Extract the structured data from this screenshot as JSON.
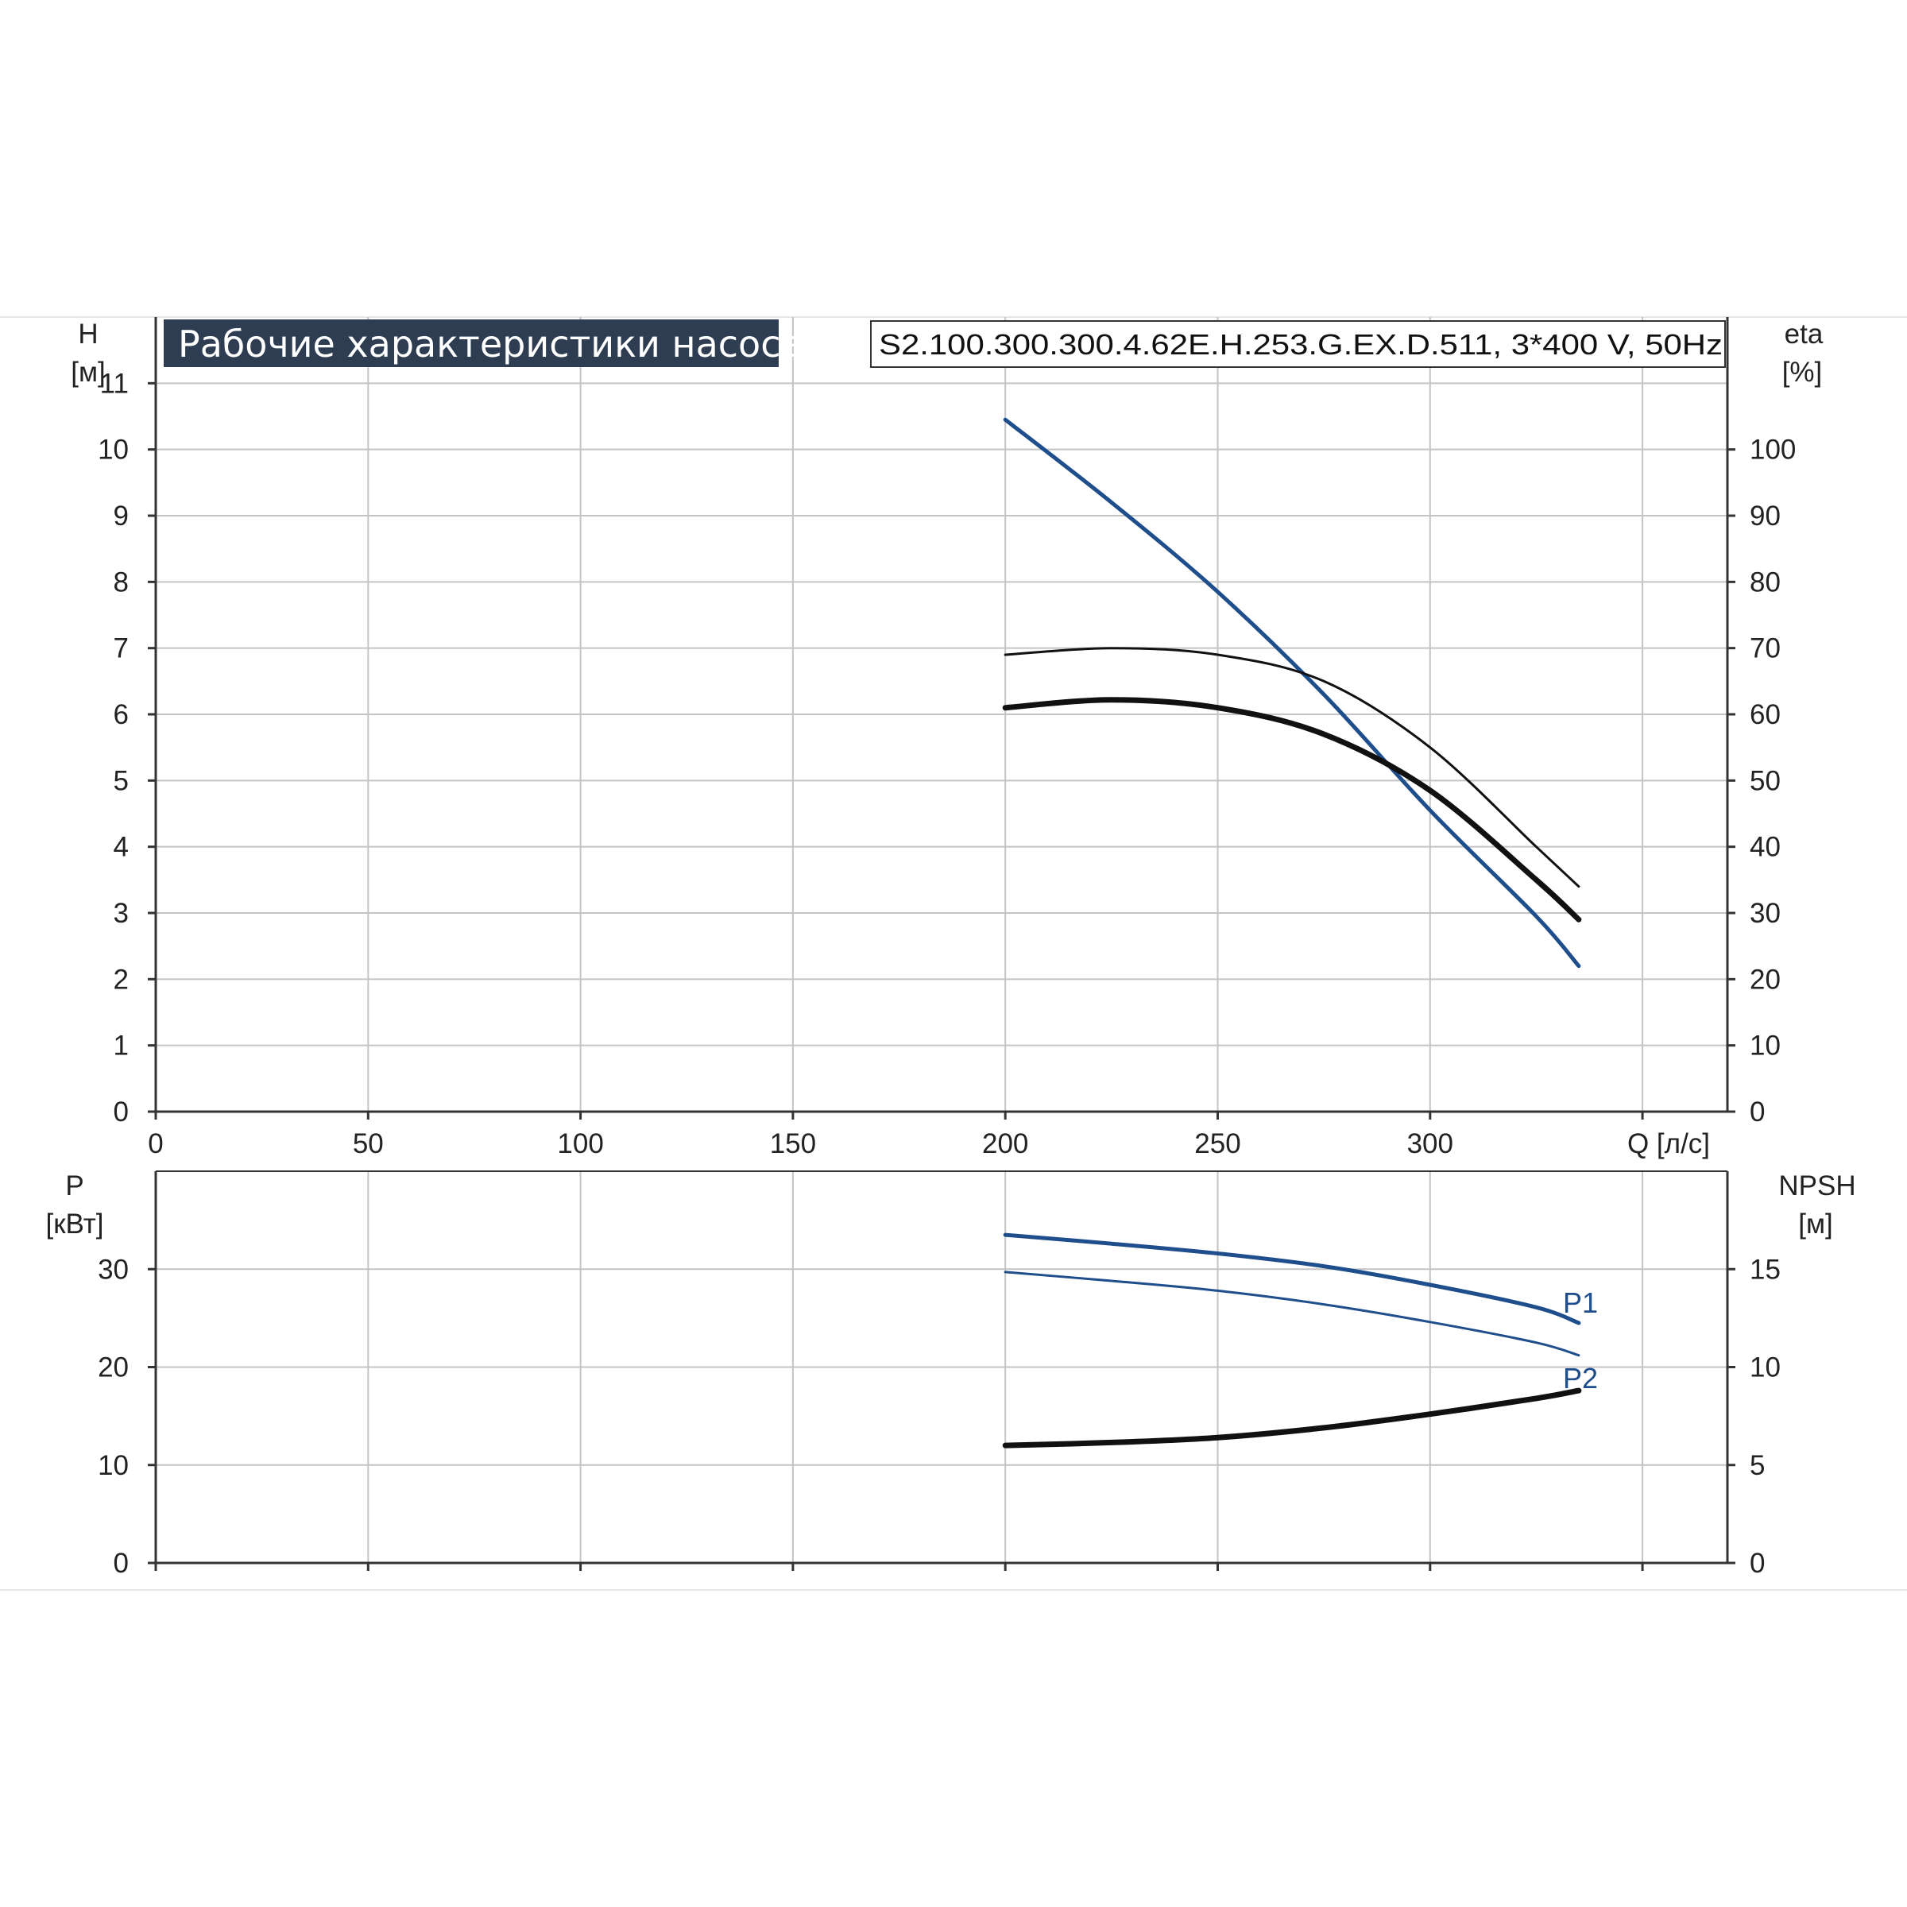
{
  "header": {
    "title": "Рабочие характеристики насоса",
    "model": "S2.100.300.300.4.62E.H.253.G.EX.D.511, 3*400 V, 50Hz"
  },
  "colors": {
    "blue": "#1f4e8c",
    "black": "#111111",
    "grid": "#c4c4c4",
    "axis": "#333333",
    "title_bg": "#2e3d52"
  },
  "chart_data": [
    {
      "type": "line",
      "panel": "top",
      "x_unit": "Q [л/с]",
      "left_axis": {
        "label": "H",
        "unit": "[м]",
        "range": [
          0,
          12
        ],
        "ticks": [
          "0",
          "1",
          "2",
          "3",
          "4",
          "5",
          "6",
          "7",
          "8",
          "9",
          "10",
          "11"
        ]
      },
      "right_axis": {
        "label": "eta",
        "unit": "[%]",
        "range": [
          0,
          120
        ],
        "ticks": [
          "0",
          "10",
          "20",
          "30",
          "40",
          "50",
          "60",
          "70",
          "80",
          "90",
          "100"
        ]
      },
      "x_axis": {
        "range": [
          0,
          370
        ],
        "ticks": [
          "0",
          "50",
          "100",
          "150",
          "200",
          "250",
          "300"
        ]
      },
      "grid": true,
      "series": [
        {
          "axis": "left",
          "color": "#1f4e8c",
          "width": 5,
          "x": [
            200,
            225,
            250,
            275,
            300,
            325,
            335
          ],
          "y": [
            10.45,
            9.2,
            7.85,
            6.3,
            4.55,
            2.95,
            2.2
          ]
        },
        {
          "axis": "right",
          "color": "#111111",
          "width": 3,
          "x": [
            200,
            225,
            250,
            275,
            300,
            325,
            335
          ],
          "y": [
            69,
            70,
            69,
            65,
            55,
            40,
            34
          ]
        },
        {
          "axis": "right",
          "color": "#111111",
          "width": 7,
          "x": [
            200,
            225,
            250,
            275,
            300,
            325,
            335
          ],
          "y": [
            61,
            62.2,
            61,
            57,
            48.5,
            35,
            29
          ]
        }
      ]
    },
    {
      "type": "line",
      "panel": "bottom",
      "left_axis": {
        "label": "P",
        "unit": "[кВт]",
        "range": [
          0,
          40
        ],
        "ticks": [
          "0",
          "10",
          "20",
          "30"
        ]
      },
      "right_axis": {
        "label": "NPSH",
        "unit": "[м]",
        "range": [
          0,
          20
        ],
        "ticks": [
          "0",
          "5",
          "10",
          "15"
        ]
      },
      "x_axis": {
        "range": [
          0,
          370
        ]
      },
      "grid": true,
      "series": [
        {
          "name": "P1",
          "axis": "left",
          "color": "#1f4e8c",
          "width": 5,
          "x": [
            200,
            225,
            250,
            275,
            300,
            325,
            335
          ],
          "y": [
            33.5,
            32.6,
            31.6,
            30.3,
            28.4,
            26.1,
            24.5
          ]
        },
        {
          "name": "P2",
          "axis": "left",
          "color": "#1f4e8c",
          "width": 3,
          "x": [
            200,
            225,
            250,
            275,
            300,
            325,
            335
          ],
          "y": [
            29.7,
            28.8,
            27.8,
            26.4,
            24.6,
            22.5,
            21.2
          ]
        },
        {
          "axis": "right",
          "color": "#111111",
          "width": 7,
          "x": [
            200,
            225,
            250,
            275,
            300,
            325,
            335
          ],
          "y": [
            6.0,
            6.15,
            6.4,
            6.9,
            7.6,
            8.4,
            8.8
          ]
        }
      ]
    }
  ]
}
